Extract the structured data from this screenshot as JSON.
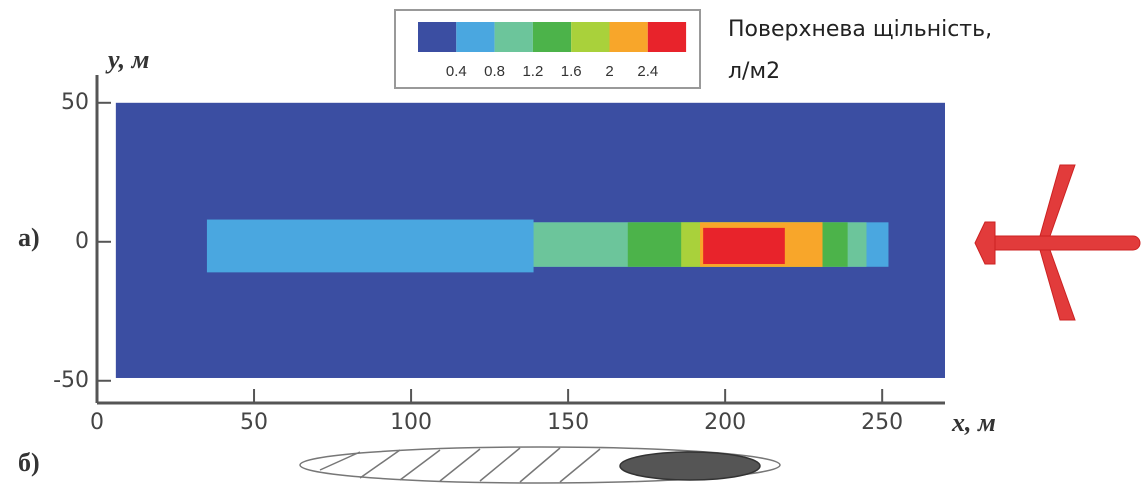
{
  "chart_data": {
    "type": "contour",
    "panel_a": "а)",
    "panel_b": "б)",
    "x_label": "x, м",
    "y_label": "y, м",
    "colorbar_title": [
      "Поверхнева щільність,",
      "л/м2"
    ],
    "colorbar_colors": [
      "#3b4ea2",
      "#4aa7e0",
      "#6cc59b",
      "#4cb34a",
      "#a9d13b",
      "#f8a62a",
      "#e8232b"
    ],
    "colorbar_ticks": [
      0.4,
      0.8,
      1.2,
      1.6,
      2,
      2.4
    ],
    "xlim": [
      0,
      270
    ],
    "ylim": [
      -58,
      60
    ],
    "xticks": [
      0,
      50,
      100,
      150,
      200,
      250
    ],
    "yticks": [
      -50,
      0,
      50
    ],
    "zones": [
      {
        "color": "#3b4ea2",
        "x": [
          6,
          270
        ],
        "y": [
          -49,
          50
        ]
      },
      {
        "color": "#4aa7e0",
        "x": [
          35,
          139
        ],
        "y": [
          -11,
          8
        ]
      },
      {
        "color": "#4aa7e0",
        "x": [
          139,
          252
        ],
        "y": [
          -9,
          7
        ]
      },
      {
        "color": "#6cc59b",
        "x": [
          139,
          245
        ],
        "y": [
          -9,
          7
        ]
      },
      {
        "color": "#4cb34a",
        "x": [
          169,
          239
        ],
        "y": [
          -9,
          7
        ]
      },
      {
        "color": "#a9d13b",
        "x": [
          186,
          231
        ],
        "y": [
          -9,
          7
        ]
      },
      {
        "color": "#f8a62a",
        "x": [
          192,
          231
        ],
        "y": [
          -9,
          7
        ]
      },
      {
        "color": "#e8232b",
        "x": [
          193,
          219
        ],
        "y": [
          -8,
          5
        ]
      }
    ]
  }
}
